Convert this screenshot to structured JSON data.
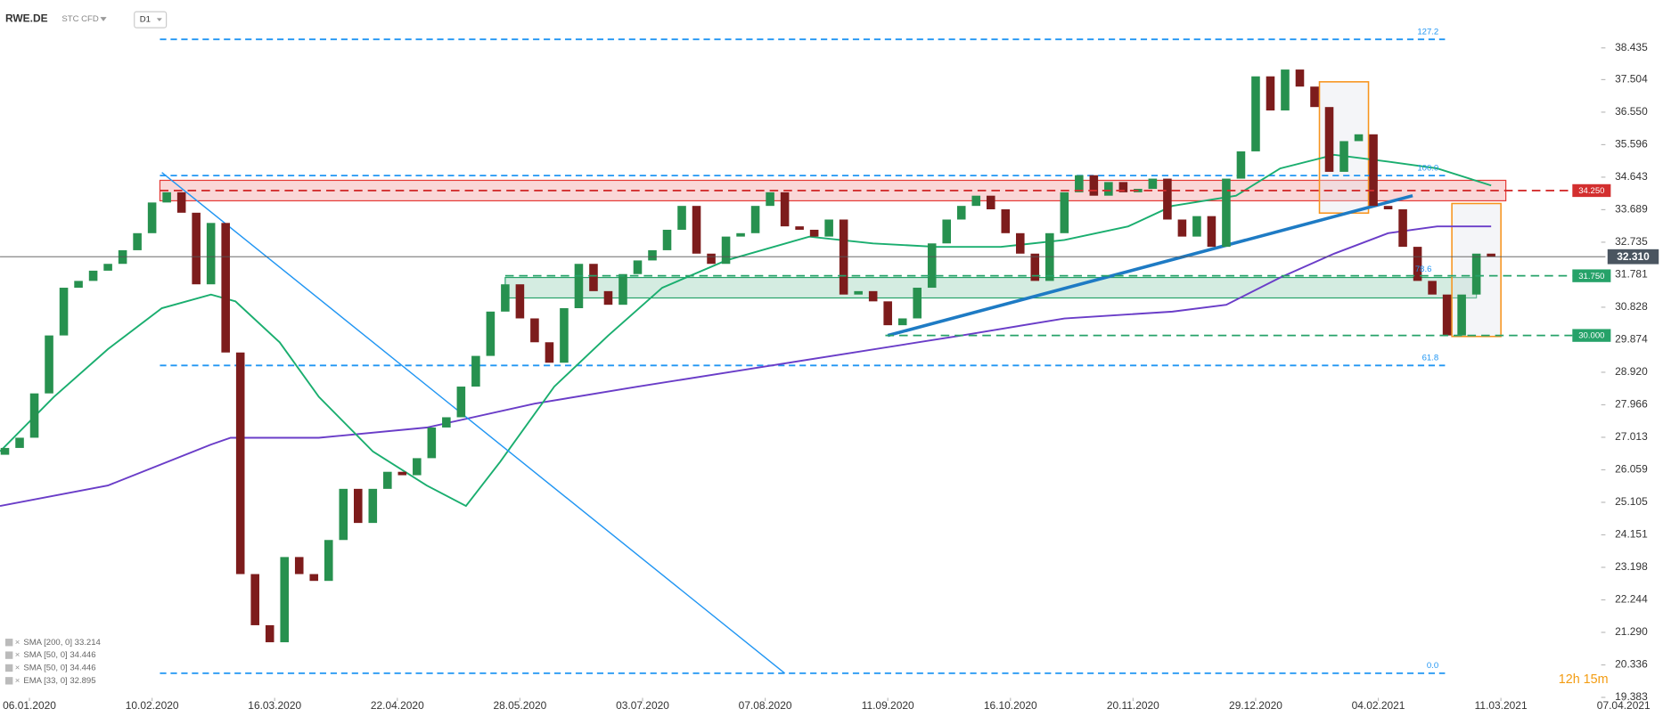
{
  "header": {
    "symbol": "RWE.DE",
    "instrument": "STC CFD",
    "interval": "D1"
  },
  "timer": "12h 15m",
  "chart_data": {
    "type": "candlestick",
    "x": [
      1,
      4,
      7,
      10,
      13,
      16,
      19,
      22,
      25,
      28,
      31,
      34,
      37,
      40,
      43,
      46,
      49,
      52,
      55,
      58,
      61,
      64,
      67,
      70,
      73,
      76,
      79,
      82,
      85,
      88,
      91,
      94,
      97,
      100,
      103,
      106,
      109,
      112,
      115,
      118,
      121,
      124,
      127,
      130,
      133,
      136,
      139,
      142,
      145,
      148,
      151,
      154,
      157,
      160,
      163,
      166,
      169,
      172,
      175,
      178,
      181,
      184,
      187,
      190,
      193,
      196,
      199,
      202,
      205,
      208,
      211,
      214,
      217,
      220,
      223,
      226,
      229,
      232,
      235,
      238,
      241,
      244,
      247,
      250,
      253,
      256,
      259,
      262,
      265,
      268,
      271,
      274,
      277,
      280,
      283,
      286,
      289,
      292,
      295,
      298,
      301,
      304
    ],
    "open": [
      26.5,
      26.7,
      27.0,
      28.3,
      30.0,
      31.4,
      31.6,
      31.9,
      32.1,
      32.5,
      33.0,
      33.9,
      34.2,
      33.6,
      31.5,
      33.3,
      29.5,
      23.0,
      21.5,
      21.0,
      23.5,
      23.0,
      22.8,
      24.0,
      25.5,
      24.5,
      25.5,
      26.0,
      25.9,
      26.4,
      27.3,
      27.6,
      28.5,
      29.4,
      30.7,
      31.5,
      30.5,
      29.8,
      29.2,
      30.8,
      32.1,
      31.3,
      30.9,
      31.8,
      32.2,
      32.5,
      33.1,
      33.8,
      32.4,
      32.1,
      32.9,
      33.0,
      33.8,
      34.2,
      33.2,
      33.1,
      32.9,
      33.4,
      31.2,
      31.3,
      31.0,
      30.3,
      30.5,
      31.4,
      32.7,
      33.4,
      33.8,
      34.1,
      33.7,
      33.0,
      32.4,
      31.6,
      33.0,
      34.2,
      34.7,
      34.1,
      34.5,
      34.2,
      34.3,
      34.6,
      33.4,
      32.9,
      33.5,
      32.6,
      34.6,
      35.4,
      37.6,
      36.6,
      37.8,
      37.3,
      36.7,
      34.8,
      35.7,
      35.9,
      33.8,
      33.7,
      32.6,
      31.6,
      31.2,
      30.0,
      31.2,
      32.4
    ],
    "close": [
      26.7,
      27.0,
      28.3,
      30.0,
      31.4,
      31.6,
      31.9,
      32.1,
      32.5,
      33.0,
      33.9,
      34.2,
      33.6,
      31.5,
      33.3,
      29.5,
      23.0,
      21.5,
      21.0,
      23.5,
      23.0,
      22.8,
      24.0,
      25.5,
      24.5,
      25.5,
      26.0,
      25.9,
      26.4,
      27.3,
      27.6,
      28.5,
      29.4,
      30.7,
      31.5,
      30.5,
      29.8,
      29.2,
      30.8,
      32.1,
      31.3,
      30.9,
      31.8,
      32.2,
      32.5,
      33.1,
      33.8,
      32.4,
      32.1,
      32.9,
      33.0,
      33.8,
      34.2,
      33.2,
      33.1,
      32.9,
      33.4,
      31.2,
      31.3,
      31.0,
      30.3,
      30.5,
      31.4,
      32.7,
      33.4,
      33.8,
      34.1,
      33.7,
      33.0,
      32.4,
      31.6,
      33.0,
      34.2,
      34.7,
      34.1,
      34.5,
      34.2,
      34.3,
      34.6,
      33.4,
      32.9,
      33.5,
      32.6,
      34.6,
      35.4,
      37.6,
      36.6,
      37.8,
      37.3,
      36.7,
      34.8,
      35.7,
      35.9,
      33.8,
      33.7,
      32.6,
      31.6,
      31.2,
      30.0,
      31.2,
      32.4,
      32.31
    ],
    "up_color": "#27914f",
    "down_color": "#7d1c1c",
    "series": [
      {
        "name": "SMA [200, 0] 33.214",
        "color": "#6a3dc8",
        "x": [
          0,
          22,
          43,
          47,
          65,
          87,
          109,
          130,
          152,
          174,
          196,
          217,
          239,
          250,
          261,
          272,
          283,
          293,
          304
        ],
        "values": [
          25.0,
          25.6,
          26.8,
          27.0,
          27.0,
          27.3,
          28.0,
          28.5,
          29.0,
          29.5,
          30.0,
          30.5,
          30.7,
          30.9,
          31.7,
          32.4,
          33.0,
          33.2,
          33.2
        ]
      },
      {
        "name": "SMA [50, 0] 34.446",
        "color": "#1aae6f",
        "x": [
          0,
          11,
          22,
          33,
          43,
          48,
          57,
          65,
          76,
          87,
          95,
          102,
          113,
          124,
          135,
          148,
          165,
          178,
          191,
          204,
          217,
          230,
          239,
          252,
          261,
          272,
          283,
          293,
          304
        ],
        "values": [
          26.6,
          28.2,
          29.6,
          30.8,
          31.2,
          31.0,
          29.8,
          28.2,
          26.6,
          25.6,
          25.0,
          26.3,
          28.5,
          30.0,
          31.4,
          32.2,
          32.9,
          32.7,
          32.6,
          32.6,
          32.8,
          33.2,
          33.8,
          34.1,
          34.9,
          35.3,
          35.1,
          34.9,
          34.4
        ]
      }
    ],
    "legend_extra": [
      "SMA [50, 0] 34.446",
      "EMA [33, 0] 32.895"
    ],
    "xlim": [
      0,
      326
    ],
    "xticks": [
      {
        "value": 6,
        "label": "06.01.2020"
      },
      {
        "value": 31,
        "label": "10.02.2020"
      },
      {
        "value": 56,
        "label": "16.03.2020"
      },
      {
        "value": 81,
        "label": "22.04.2020"
      },
      {
        "value": 106,
        "label": "28.05.2020"
      },
      {
        "value": 131,
        "label": "03.07.2020"
      },
      {
        "value": 156,
        "label": "07.08.2020"
      },
      {
        "value": 181,
        "label": "11.09.2020"
      },
      {
        "value": 206,
        "label": "16.10.2020"
      },
      {
        "value": 231,
        "label": "20.11.2020"
      },
      {
        "value": 256,
        "label": "29.12.2020"
      },
      {
        "value": 281,
        "label": "04.02.2021"
      },
      {
        "value": 306,
        "label": "11.03.2021"
      },
      {
        "value": 331,
        "label": "07.04.2021"
      }
    ],
    "ylim": [
      19.37,
      39.84
    ],
    "yticks": [
      38.435,
      37.504,
      {
        "value": 36.55,
        "label": "36.550"
      },
      35.596,
      34.643,
      33.689,
      32.735,
      31.781,
      30.828,
      29.874,
      {
        "value": 28.92,
        "label": "28.920"
      },
      27.966,
      27.013,
      26.059,
      25.105,
      24.151,
      23.198,
      22.244,
      {
        "value": 21.29,
        "label": "21.290"
      },
      20.336,
      19.383
    ],
    "current_price": {
      "value": 32.31,
      "label": "32.310"
    },
    "levels": [
      {
        "value": 34.25,
        "label": "34.250",
        "color": "#d32f2f",
        "from": 32.6
      },
      {
        "value": 31.75,
        "label": "31.750",
        "color": "#26a269",
        "from": 103,
        "fib_label": "78.6"
      },
      {
        "value": 30,
        "label": "30.000",
        "color": "#26a269",
        "from": 180.5
      }
    ],
    "zones": [
      {
        "low": 33.95,
        "high": 34.55,
        "from": 32.6,
        "to": 307,
        "color": "#e53935"
      },
      {
        "low": 31.1,
        "high": 31.7,
        "from": 103,
        "to": 301,
        "color": "#26a269"
      }
    ],
    "boxes": [
      {
        "low": 33.59,
        "high": 37.44,
        "from": 269,
        "to": 279
      },
      {
        "low": 29.97,
        "high": 33.87,
        "from": 296,
        "to": 306
      }
    ],
    "box_color": "#f7941d",
    "trendlines": [
      {
        "from": [
          33,
          34.78
        ],
        "to": [
          160,
          20.09
        ],
        "color": "#2196f3",
        "width": 1.2
      },
      {
        "from": [
          181,
          30.0
        ],
        "to": [
          288,
          34.1
        ],
        "color": "#1e7bc4",
        "width": 3
      }
    ],
    "fib_color": "#2196f3",
    "fib_range": [
      32.6,
      294.6
    ],
    "fib_levels": [
      {
        "label": "127.2",
        "price": 38.685
      },
      {
        "label": "100.0",
        "price": 34.69
      },
      {
        "label": "61.8",
        "price": 29.12
      },
      {
        "label": "0.0",
        "price": 20.09
      }
    ]
  }
}
